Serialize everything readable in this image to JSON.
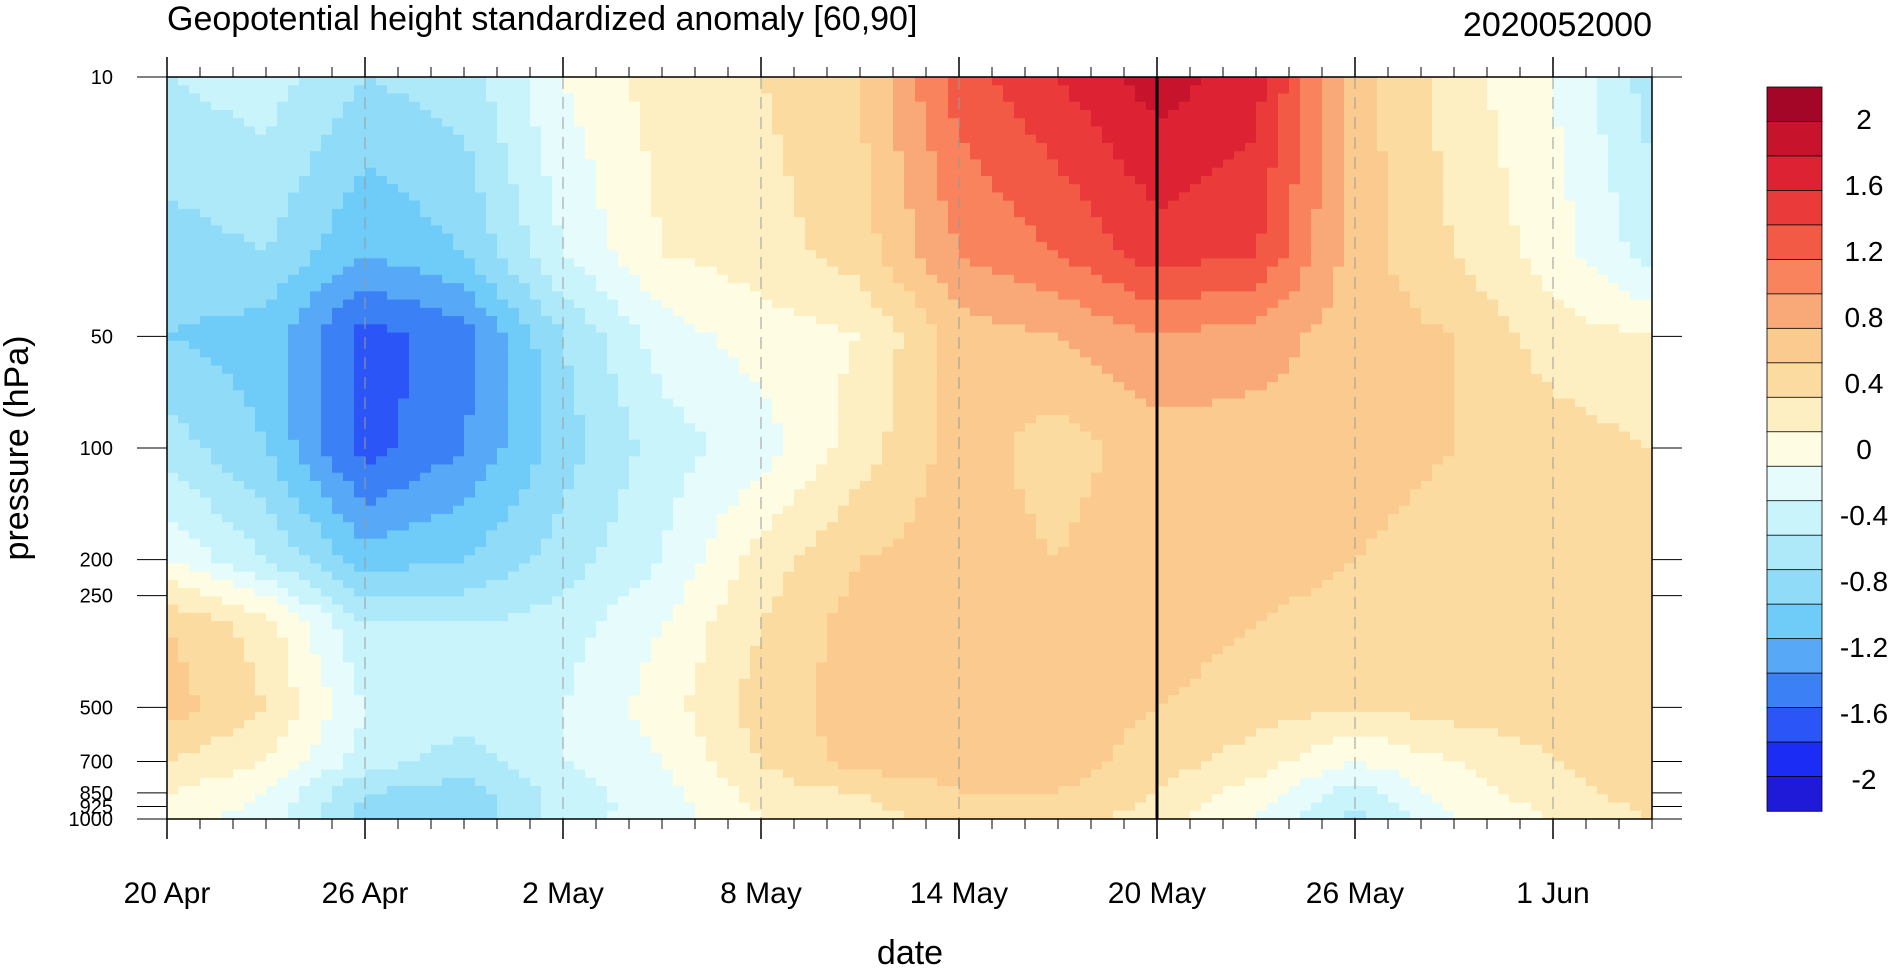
{
  "chart_data": {
    "type": "heatmap",
    "subtype": "filled-contour (time–pressure cross section)",
    "title": "Geopotential height standardized anomaly [60,90]",
    "subtitle": "2020052000",
    "xlabel": "date",
    "ylabel": "pressure (hPa)",
    "y_scale": "log",
    "y_reversed": true,
    "ylim": [
      1000,
      10
    ],
    "xlim": [
      "20 Apr",
      "4 Jun"
    ],
    "x_tick_labels": [
      "20 Apr",
      "26 Apr",
      "2 May",
      "8 May",
      "14 May",
      "20 May",
      "26 May",
      "1 Jun"
    ],
    "x_tick_day_index": [
      0,
      6,
      12,
      18,
      24,
      30,
      36,
      42
    ],
    "x_days_total": 45,
    "y_tick_labels": [
      "10",
      "50",
      "100",
      "200",
      "250",
      "500",
      "700",
      "850",
      "925",
      "1000"
    ],
    "y_tick_values": [
      10,
      50,
      100,
      200,
      250,
      500,
      700,
      850,
      925,
      1000
    ],
    "vertical_marker_date": "20 May",
    "grid": "dashed vertical lines at x ticks",
    "colorbar": {
      "placement": "right",
      "labels": [
        "2",
        "1.6",
        "1.2",
        "0.8",
        "0.4",
        "0",
        "-0.4",
        "-0.8",
        "-1.2",
        "-1.6",
        "-2"
      ],
      "levels": [
        -2,
        -1.8,
        -1.6,
        -1.4,
        -1.2,
        -1.0,
        -0.8,
        -0.6,
        -0.4,
        -0.2,
        0,
        0.2,
        0.4,
        0.6,
        0.8,
        1.0,
        1.2,
        1.4,
        1.6,
        1.8,
        2
      ],
      "colors": [
        "#1e1ad8",
        "#1b2cf5",
        "#2b55f7",
        "#3c80f5",
        "#57a8f7",
        "#6fcbf8",
        "#90dcf8",
        "#aee9fa",
        "#c9f4fb",
        "#e6fcfc",
        "#fefde3",
        "#fdefc2",
        "#fcdba0",
        "#fbca8e",
        "#f9a978",
        "#f8835c",
        "#f25a46",
        "#ea3a39",
        "#dd2234",
        "#c8132c",
        "#a30626"
      ]
    },
    "grid_values_days": [
      0,
      3,
      6,
      9,
      12,
      15,
      18,
      21,
      24,
      27,
      30,
      33,
      36,
      39,
      42,
      45
    ],
    "grid_values_pressures": [
      10,
      30,
      50,
      100,
      200,
      300,
      500,
      700,
      850,
      1000
    ],
    "grid_values": [
      [
        -0.5,
        -0.4,
        -0.7,
        -0.6,
        -0.1,
        0.2,
        0.3,
        0.5,
        1.2,
        1.5,
        1.8,
        1.6,
        0.6,
        0.2,
        -0.1,
        -0.6
      ],
      [
        -0.8,
        -0.7,
        -1.1,
        -0.9,
        -0.3,
        0.1,
        0.2,
        0.4,
        0.9,
        1.1,
        1.4,
        1.3,
        0.6,
        0.3,
        0.0,
        -0.4
      ],
      [
        -0.9,
        -1.0,
        -1.6,
        -1.4,
        -0.7,
        -0.2,
        0.0,
        0.1,
        0.6,
        0.7,
        0.9,
        0.8,
        0.6,
        0.5,
        0.2,
        0.1
      ],
      [
        -0.6,
        -0.9,
        -1.6,
        -1.3,
        -0.8,
        -0.4,
        -0.2,
        0.2,
        0.6,
        0.4,
        0.6,
        0.6,
        0.6,
        0.5,
        0.4,
        0.3
      ],
      [
        -0.1,
        -0.5,
        -1.0,
        -0.9,
        -0.6,
        -0.3,
        0.2,
        0.5,
        0.6,
        0.5,
        0.7,
        0.6,
        0.5,
        0.4,
        0.4,
        0.3
      ],
      [
        0.5,
        0.2,
        -0.5,
        -0.5,
        -0.4,
        -0.1,
        0.3,
        0.6,
        0.7,
        0.6,
        0.6,
        0.5,
        0.4,
        0.4,
        0.4,
        0.3
      ],
      [
        0.6,
        0.3,
        -0.3,
        -0.4,
        -0.3,
        0.0,
        0.4,
        0.6,
        0.7,
        0.6,
        0.5,
        0.4,
        0.3,
        0.4,
        0.4,
        0.5
      ],
      [
        0.3,
        0.1,
        -0.4,
        -0.6,
        -0.3,
        -0.1,
        0.3,
        0.6,
        0.6,
        0.6,
        0.4,
        0.2,
        -0.1,
        0.1,
        0.3,
        0.5
      ],
      [
        0.1,
        -0.1,
        -0.7,
        -0.8,
        -0.4,
        -0.2,
        0.2,
        0.3,
        0.5,
        0.5,
        0.3,
        0.0,
        -0.4,
        0.0,
        0.2,
        0.4
      ],
      [
        0.0,
        -0.2,
        -0.8,
        -0.9,
        -0.4,
        -0.2,
        0.1,
        0.2,
        0.4,
        0.4,
        0.2,
        -0.1,
        -0.6,
        -0.1,
        0.1,
        0.3
      ]
    ]
  }
}
